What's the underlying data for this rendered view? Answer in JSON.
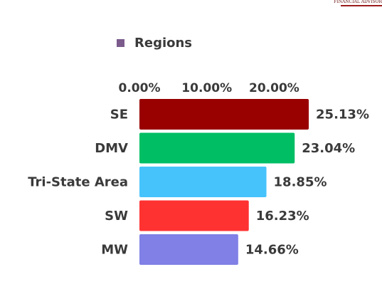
{
  "brand": {
    "logo_text": "FINANCIAL ADVISOR"
  },
  "chart_data": {
    "type": "bar",
    "orientation": "horizontal",
    "title": "",
    "xlabel": "",
    "ylabel": "",
    "legend": {
      "entries": [
        "Regions"
      ],
      "placement": "top"
    },
    "categories": [
      "SE",
      "DMV",
      "Tri-State Area",
      "SW",
      "MW"
    ],
    "series": [
      {
        "name": "Regions",
        "values": [
          25.13,
          23.04,
          18.85,
          16.23,
          14.66
        ],
        "data_labels": [
          "25.13%",
          "23.04%",
          "18.85%",
          "16.23%",
          "14.66%"
        ]
      }
    ],
    "bar_colors": [
      "#990000",
      "#00be64",
      "#47c3fc",
      "#ff3232",
      "#8080e6"
    ],
    "legend_color": "#7b5a8c",
    "x_ticks": [
      0,
      10,
      20
    ],
    "x_tick_labels": [
      "0.00%",
      "10.00%",
      "20.00%"
    ],
    "xlim": [
      0,
      26.5
    ],
    "grid": false
  }
}
